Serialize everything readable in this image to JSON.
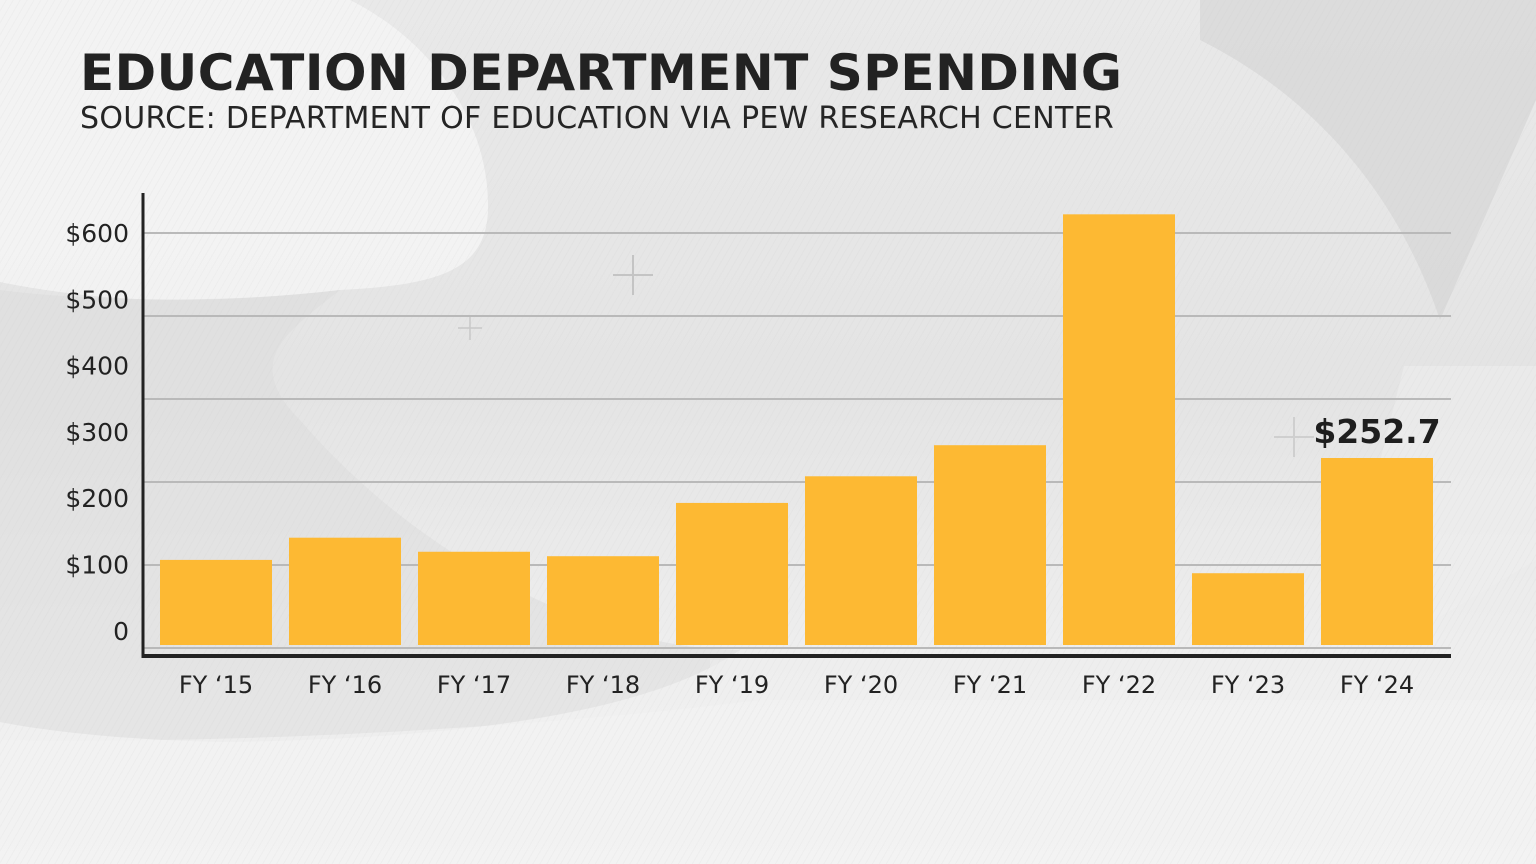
{
  "header": {
    "title": "EDUCATION DEPARTMENT SPENDING",
    "subtitle": "SOURCE: DEPARTMENT OF EDUCATION VIA PEW RESEARCH CENTER"
  },
  "colors": {
    "bar": "#FDB933",
    "text": "#222222",
    "gridline": "#b9b9b9",
    "axis": "#222222"
  },
  "chart_data": {
    "type": "bar",
    "title": "EDUCATION DEPARTMENT SPENDING",
    "subtitle": "SOURCE: DEPARTMENT OF EDUCATION VIA PEW RESEARCH CENTER",
    "xlabel": "",
    "ylabel": "",
    "categories": [
      "FY ‘15",
      "FY ‘16",
      "FY ‘17",
      "FY ‘18",
      "FY ‘19",
      "FY ‘20",
      "FY ‘21",
      "FY ‘22",
      "FY ‘23",
      "FY ‘24"
    ],
    "values": [
      115,
      145,
      126,
      120,
      192,
      228,
      270,
      582,
      97,
      252.7
    ],
    "ylim": [
      0,
      600
    ],
    "yticks": [
      0,
      100,
      200,
      300,
      400,
      500,
      600
    ],
    "ytick_labels": [
      "0",
      "$100",
      "$200",
      "$300",
      "$400",
      "$500",
      "$600"
    ],
    "grid": true,
    "legend": "none",
    "annotations": [
      {
        "category": "FY ‘24",
        "text": "$252.7"
      }
    ]
  }
}
